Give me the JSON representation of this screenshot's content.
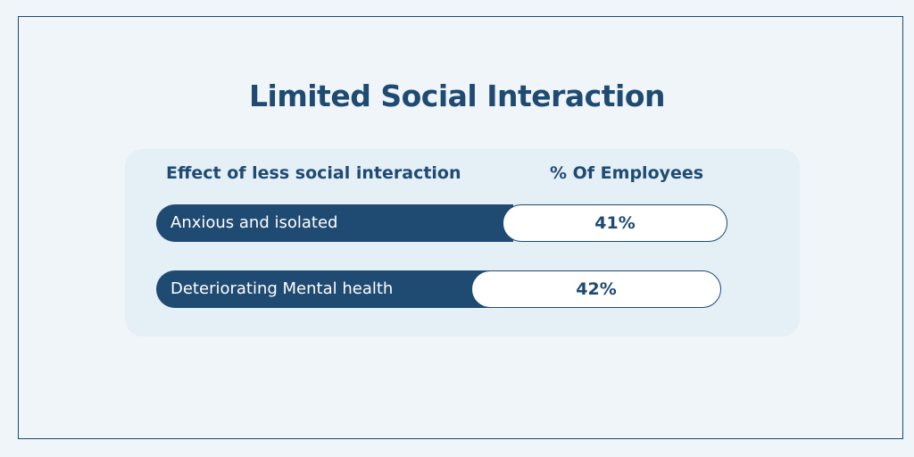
{
  "title": "Limited Social Interaction",
  "colors": {
    "background": "#eff5f8",
    "panel": "#e4eff6",
    "primary": "#1f4a72",
    "pill": "#ffffff"
  },
  "chart_data": {
    "type": "table",
    "title": "Limited Social Interaction",
    "columns": [
      "Effect of less social interaction",
      "% Of Employees"
    ],
    "rows": [
      {
        "label": "Anxious and isolated",
        "value": 41,
        "display": "41%"
      },
      {
        "label": "Deteriorating Mental health",
        "value": 42,
        "display": "42%"
      }
    ]
  }
}
